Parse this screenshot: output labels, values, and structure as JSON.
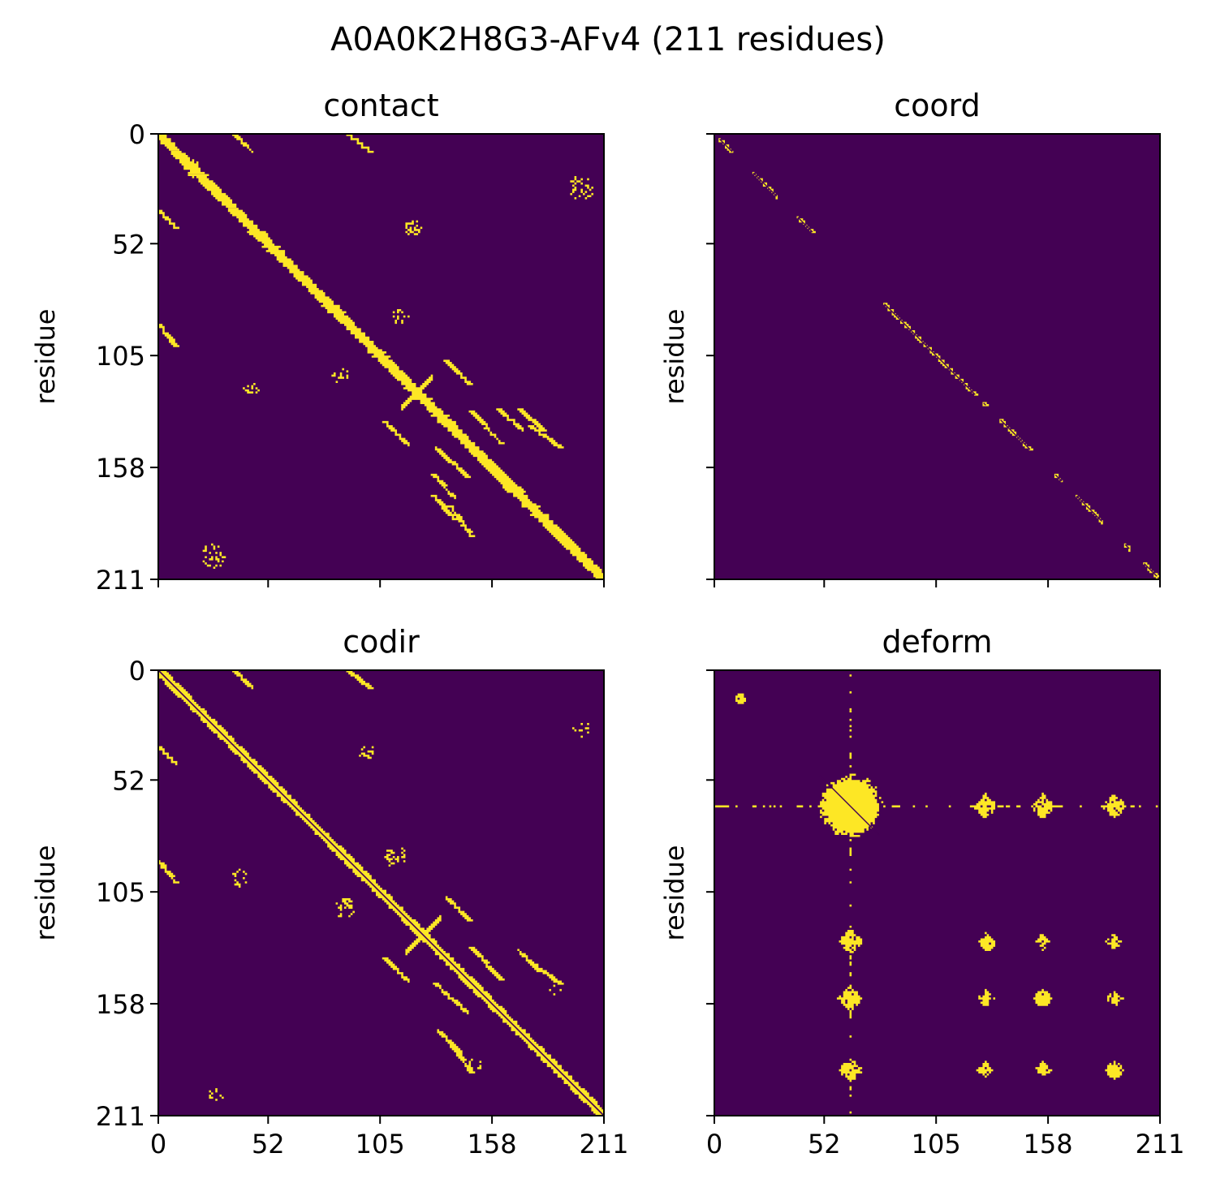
{
  "figure": {
    "suptitle": "A0A0K2H8G3-AFv4 (211 residues)"
  },
  "colors": {
    "background": "#440154",
    "foreground": "#fde725",
    "axis": "#000000"
  },
  "chart_data": [
    {
      "type": "heatmap",
      "title": "contact",
      "xlabel": "",
      "ylabel": "residue",
      "xlim": [
        0,
        211
      ],
      "ylim": [
        211,
        0
      ],
      "xticks": [
        "0",
        "52",
        "105",
        "158",
        "211"
      ],
      "yticks": [
        "0",
        "52",
        "105",
        "158",
        "211"
      ],
      "show_xticklabels": false,
      "show_yticklabels": true,
      "diagonals": [
        {
          "from": [
            0,
            0
          ],
          "to": [
            211,
            211
          ],
          "halfwidth": 3.2
        },
        {
          "from": [
            36,
            0
          ],
          "to": [
            44,
            8
          ],
          "halfwidth": 1.2
        },
        {
          "from": [
            0,
            36
          ],
          "to": [
            8,
            44
          ],
          "halfwidth": 1.2
        },
        {
          "from": [
            90,
            0
          ],
          "to": [
            100,
            8
          ],
          "halfwidth": 1.2
        },
        {
          "from": [
            0,
            90
          ],
          "to": [
            8,
            100
          ],
          "halfwidth": 1.2
        },
        {
          "from": [
            136,
            107
          ],
          "to": [
            147,
            118
          ],
          "halfwidth": 1.2
        },
        {
          "from": [
            107,
            136
          ],
          "to": [
            118,
            147
          ],
          "halfwidth": 1.2
        },
        {
          "from": [
            148,
            131
          ],
          "to": [
            162,
            146
          ],
          "halfwidth": 1.2
        },
        {
          "from": [
            131,
            148
          ],
          "to": [
            146,
            162
          ],
          "halfwidth": 1.2
        },
        {
          "from": [
            176,
            138
          ],
          "to": [
            190,
            148
          ],
          "halfwidth": 1.2
        },
        {
          "from": [
            138,
            176
          ],
          "to": [
            148,
            190
          ],
          "halfwidth": 1.2
        },
        {
          "from": [
            130,
            161
          ],
          "to": [
            140,
            172
          ],
          "halfwidth": 1.2
        },
        {
          "from": [
            161,
            130
          ],
          "to": [
            172,
            140
          ],
          "halfwidth": 1.2
        },
        {
          "from": [
            130,
            171
          ],
          "to": [
            140,
            182
          ],
          "halfwidth": 1.2
        },
        {
          "from": [
            171,
            130
          ],
          "to": [
            182,
            140
          ],
          "halfwidth": 1.2
        }
      ],
      "antidiagonals": [
        {
          "center": [
            122,
            122
          ],
          "length": 7,
          "halfwidth": 1.3
        }
      ],
      "blobs": [
        {
          "center": [
            16,
            16
          ],
          "radius": 4,
          "density": 0.5
        },
        {
          "center": [
            120,
            44
          ],
          "radius": 4,
          "density": 0.3
        },
        {
          "center": [
            44,
            120
          ],
          "radius": 4,
          "density": 0.3
        },
        {
          "center": [
            114,
            86
          ],
          "radius": 4,
          "density": 0.3
        },
        {
          "center": [
            86,
            114
          ],
          "radius": 4,
          "density": 0.3
        },
        {
          "center": [
            200,
            25
          ],
          "radius": 6,
          "density": 0.25
        },
        {
          "center": [
            25,
            200
          ],
          "radius": 6,
          "density": 0.25
        }
      ]
    },
    {
      "type": "heatmap",
      "title": "coord",
      "xlabel": "",
      "ylabel": "residue",
      "xlim": [
        0,
        211
      ],
      "ylim": [
        211,
        0
      ],
      "xticks": [
        "0",
        "52",
        "105",
        "158",
        "211"
      ],
      "yticks": [
        "0",
        "52",
        "105",
        "158",
        "211"
      ],
      "show_xticklabels": false,
      "show_yticklabels": false,
      "diagonal_segments": [
        [
          2,
          8
        ],
        [
          18,
          29
        ],
        [
          39,
          46
        ],
        [
          80,
          123
        ],
        [
          127,
          128
        ],
        [
          135,
          149
        ],
        [
          161,
          164
        ],
        [
          171,
          183
        ],
        [
          194,
          196
        ],
        [
          203,
          209
        ]
      ],
      "halfwidth": 1.0
    },
    {
      "type": "heatmap",
      "title": "codir",
      "xlabel": "",
      "ylabel": "residue",
      "xlim": [
        0,
        211
      ],
      "ylim": [
        211,
        0
      ],
      "xticks": [
        "0",
        "52",
        "105",
        "158",
        "211"
      ],
      "yticks": [
        "0",
        "52",
        "105",
        "158",
        "211"
      ],
      "show_xticklabels": true,
      "show_yticklabels": true,
      "diagonals": [
        {
          "from": [
            0,
            0
          ],
          "to": [
            211,
            211
          ],
          "halfwidth": 3.0
        },
        {
          "from": [
            36,
            0
          ],
          "to": [
            44,
            8
          ],
          "halfwidth": 1.2
        },
        {
          "from": [
            0,
            36
          ],
          "to": [
            8,
            44
          ],
          "halfwidth": 1.2
        },
        {
          "from": [
            90,
            0
          ],
          "to": [
            100,
            8
          ],
          "halfwidth": 1.2
        },
        {
          "from": [
            0,
            90
          ],
          "to": [
            8,
            100
          ],
          "halfwidth": 1.2
        },
        {
          "from": [
            136,
            107
          ],
          "to": [
            147,
            118
          ],
          "halfwidth": 1.2
        },
        {
          "from": [
            107,
            136
          ],
          "to": [
            118,
            147
          ],
          "halfwidth": 1.2
        },
        {
          "from": [
            148,
            131
          ],
          "to": [
            162,
            146
          ],
          "halfwidth": 1.2
        },
        {
          "from": [
            131,
            148
          ],
          "to": [
            146,
            162
          ],
          "halfwidth": 1.2
        },
        {
          "from": [
            176,
            138
          ],
          "to": [
            190,
            148
          ],
          "halfwidth": 1.2
        },
        {
          "from": [
            138,
            176
          ],
          "to": [
            148,
            190
          ],
          "halfwidth": 1.2
        },
        {
          "from": [
            132,
            170
          ],
          "to": [
            142,
            180
          ],
          "halfwidth": 1.2
        },
        {
          "from": [
            170,
            132
          ],
          "to": [
            180,
            142
          ],
          "halfwidth": 1.2
        }
      ],
      "antidiagonals": [
        {
          "center": [
            125,
            125
          ],
          "length": 8,
          "halfwidth": 1.3
        }
      ],
      "blobs": [
        {
          "center": [
            98,
            38
          ],
          "radius": 4,
          "density": 0.35
        },
        {
          "center": [
            38,
            98
          ],
          "radius": 4,
          "density": 0.35
        },
        {
          "center": [
            112,
            88
          ],
          "radius": 5,
          "density": 0.3
        },
        {
          "center": [
            88,
            112
          ],
          "radius": 5,
          "density": 0.3
        },
        {
          "center": [
            200,
            27
          ],
          "radius": 4,
          "density": 0.25
        },
        {
          "center": [
            27,
            200
          ],
          "radius": 4,
          "density": 0.25
        },
        {
          "center": [
            150,
            187
          ],
          "radius": 4,
          "density": 0.2
        },
        {
          "center": [
            187,
            150
          ],
          "radius": 4,
          "density": 0.2
        }
      ]
    },
    {
      "type": "heatmap",
      "title": "deform",
      "xlabel": "",
      "ylabel": "residue",
      "xlim": [
        0,
        211
      ],
      "ylim": [
        211,
        0
      ],
      "xticks": [
        "0",
        "52",
        "105",
        "158",
        "211"
      ],
      "yticks": [
        "0",
        "52",
        "105",
        "158",
        "211"
      ],
      "show_xticklabels": true,
      "show_yticklabels": false,
      "clusters": [
        64,
        128,
        155,
        189
      ],
      "main_cluster": {
        "center": [
          64,
          64
        ],
        "radius": 15
      },
      "small_clusters": [
        {
          "center": [
            12,
            13
          ],
          "radius": 2.5
        },
        {
          "center": [
            129,
            129
          ],
          "radius": 3.5
        },
        {
          "center": [
            155,
            155
          ],
          "radius": 4
        },
        {
          "center": [
            189,
            189
          ],
          "radius": 4
        }
      ]
    }
  ]
}
